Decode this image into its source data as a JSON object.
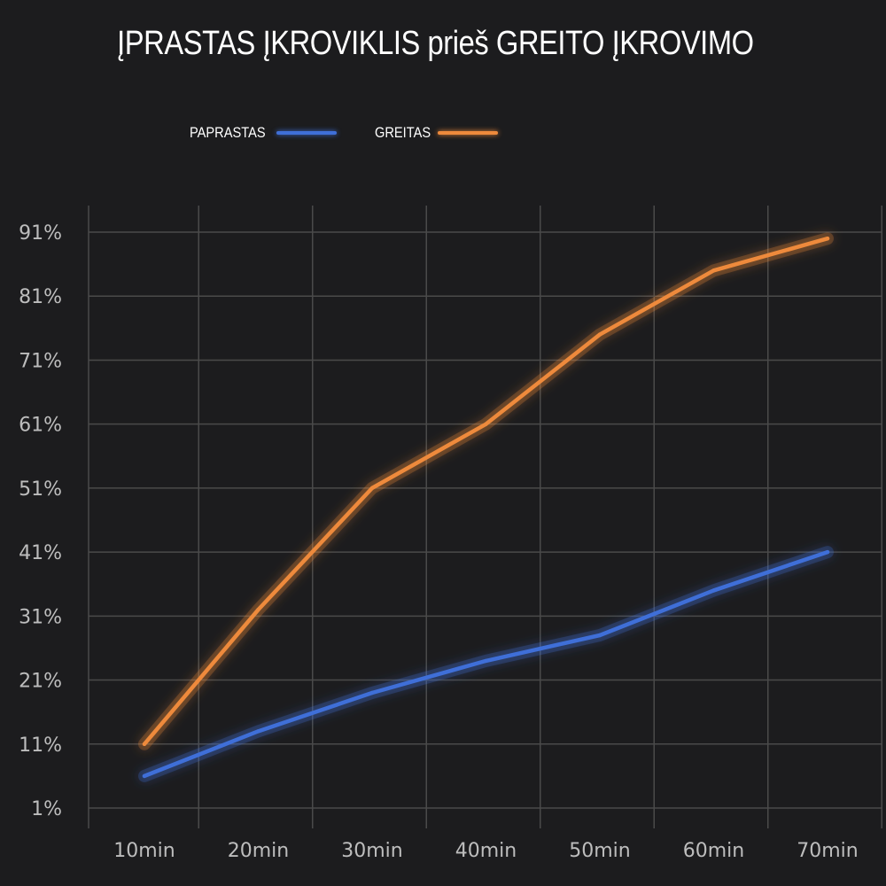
{
  "colors": {
    "background": "#1c1c1e",
    "grid": "#4a4a4a",
    "series_normal": "#3f6fd8",
    "series_fast": "#ee8a3c"
  },
  "chart_data": {
    "type": "line",
    "title": "ĮPRASTAS ĮKROVIKLIS prieš GREITO ĮKROVIMO",
    "x": [
      "10min",
      "20min",
      "30min",
      "40min",
      "50min",
      "60min",
      "70min"
    ],
    "y_ticks": [
      "1%",
      "11%",
      "21%",
      "31%",
      "41%",
      "51%",
      "61%",
      "71%",
      "81%",
      "91%"
    ],
    "y_tick_values": [
      1,
      11,
      21,
      31,
      41,
      51,
      61,
      71,
      81,
      91
    ],
    "ylim": [
      1,
      91
    ],
    "grid": true,
    "legend_position": "top-left",
    "series": [
      {
        "name": "PAPRASTAS",
        "color": "#3f6fd8",
        "values": [
          6,
          13,
          19,
          24,
          28,
          35,
          41
        ]
      },
      {
        "name": "GREITAS",
        "color": "#ee8a3c",
        "values": [
          11,
          32,
          51,
          61,
          75,
          85,
          90
        ]
      }
    ]
  }
}
